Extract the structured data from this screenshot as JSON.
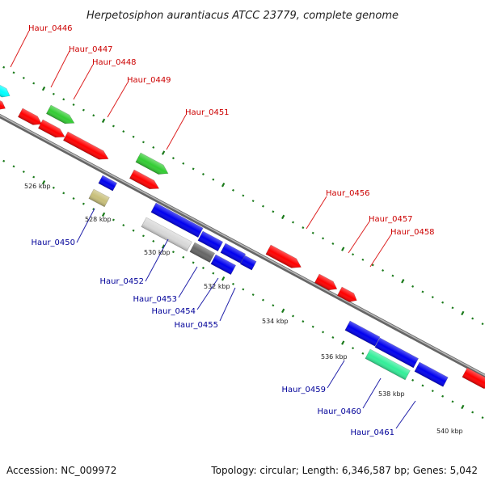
{
  "title": "Herpetosiphon aurantiacus ATCC 23779, complete genome",
  "accession_text": "Accession: NC_009972",
  "topology_text": "Topology: circular; Length: 6,346,587 bp; Genes: 5,042",
  "colors": {
    "forward_label": "#cc0000",
    "reverse_label": "#000099",
    "forward_gene": "#ff0000",
    "reverse_gene": "#0000ff",
    "tick": "#1a7a1a",
    "backbone": "#888888"
  },
  "kbp_labels": [
    "526 kbp",
    "528 kbp",
    "530 kbp",
    "532 kbp",
    "534 kbp",
    "536 kbp",
    "538 kbp",
    "540 kbp"
  ],
  "forward_genes": [
    "Haur_0446",
    "Haur_0447",
    "Haur_0448",
    "Haur_0449",
    "Haur_0451",
    "Haur_0456",
    "Haur_0457",
    "Haur_0458"
  ],
  "reverse_genes": [
    "Haur_0450",
    "Haur_0452",
    "Haur_0453",
    "Haur_0454",
    "Haur_0455",
    "Haur_0459",
    "Haur_0460",
    "Haur_0461"
  ]
}
